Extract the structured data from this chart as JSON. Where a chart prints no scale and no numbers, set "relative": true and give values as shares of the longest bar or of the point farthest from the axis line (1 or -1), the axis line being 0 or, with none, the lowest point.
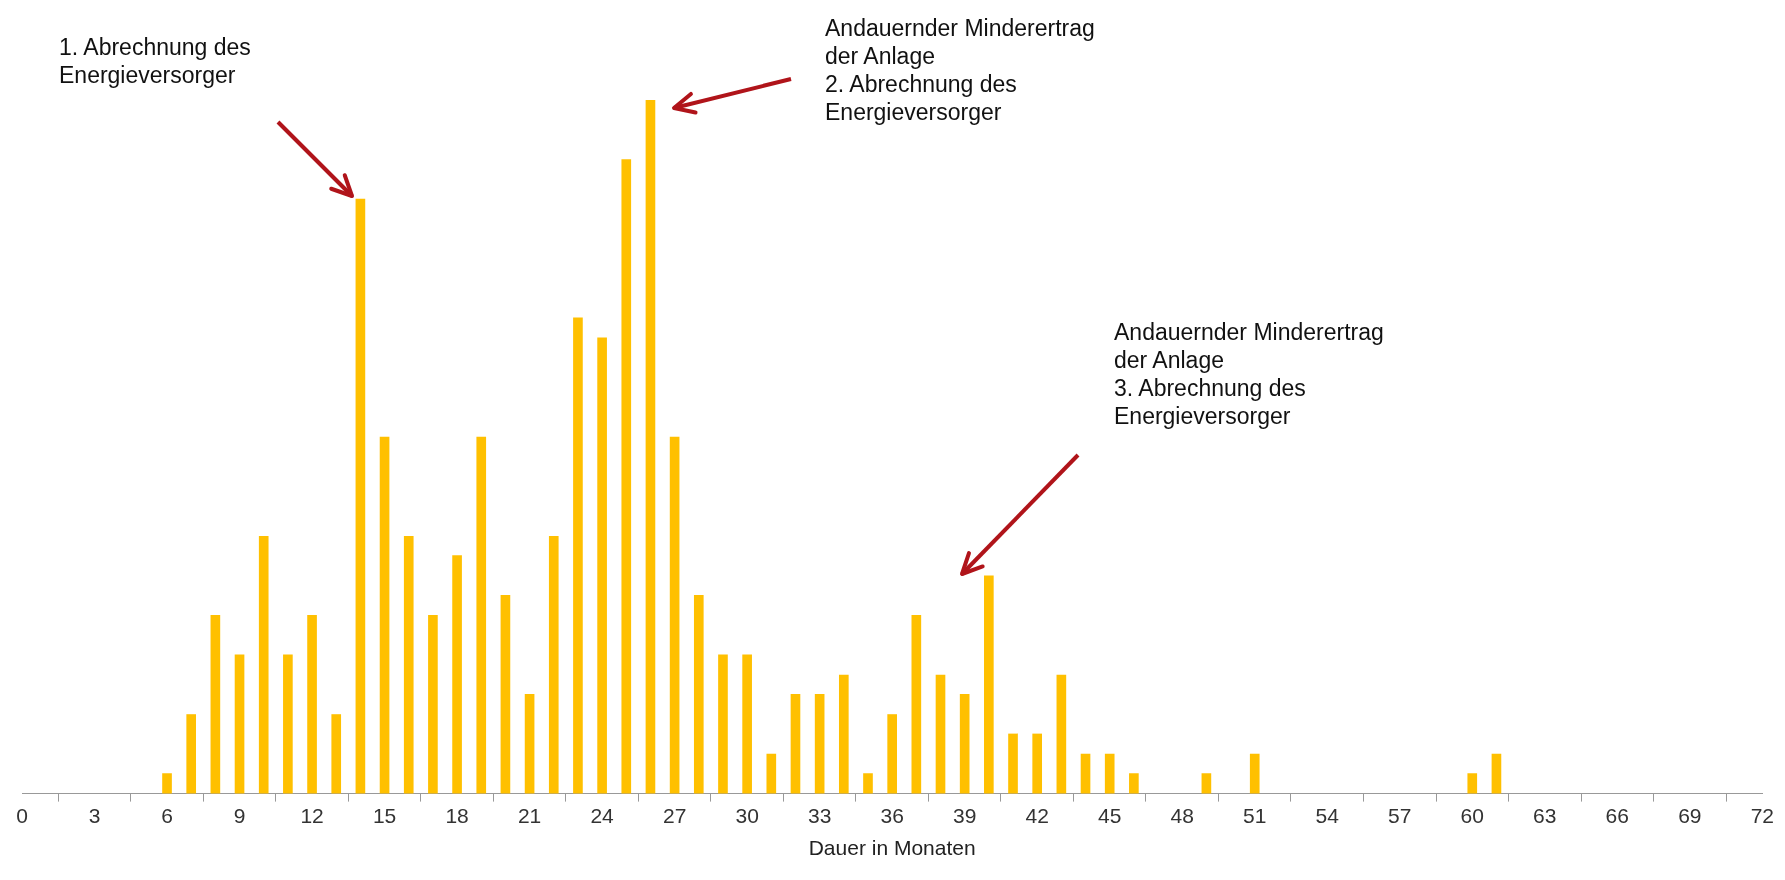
{
  "chart_data": {
    "type": "bar",
    "relative": true,
    "xlabel": "Dauer in Monaten",
    "color": "#ffc000",
    "x": [
      6,
      7,
      8,
      9,
      10,
      11,
      12,
      13,
      14,
      15,
      16,
      17,
      18,
      19,
      20,
      21,
      22,
      23,
      24,
      25,
      26,
      27,
      28,
      29,
      30,
      31,
      32,
      33,
      34,
      35,
      36,
      37,
      38,
      39,
      40,
      41,
      42,
      43,
      44,
      45,
      46,
      49,
      51,
      60,
      61
    ],
    "values": [
      0.029,
      0.114,
      0.257,
      0.2,
      0.371,
      0.2,
      0.257,
      0.114,
      0.857,
      0.514,
      0.371,
      0.257,
      0.343,
      0.514,
      0.286,
      0.143,
      0.371,
      0.686,
      0.657,
      0.914,
      1,
      0.514,
      0.286,
      0.2,
      0.2,
      0.057,
      0.143,
      0.143,
      0.171,
      0.029,
      0.114,
      0.257,
      0.171,
      0.143,
      0.314,
      0.086,
      0.086,
      0.171,
      0.057,
      0.057,
      0.029,
      0.029,
      0.057,
      0.029,
      0.057
    ],
    "xlim": [
      0,
      72
    ],
    "xticks": [
      0,
      3,
      6,
      9,
      12,
      15,
      18,
      21,
      24,
      27,
      30,
      33,
      36,
      39,
      42,
      45,
      48,
      51,
      54,
      57,
      60,
      63,
      66,
      69,
      72
    ],
    "annotations": [
      "1. Abrechnung des\nEnergieversorger",
      "Andauernder Minderertrag\nder Anlage\n2. Abrechnung des\nEnergieversorger",
      "Andauernder Minderertrag\nder Anlage\n3. Abrechnung des\nEnergieversorger"
    ]
  }
}
